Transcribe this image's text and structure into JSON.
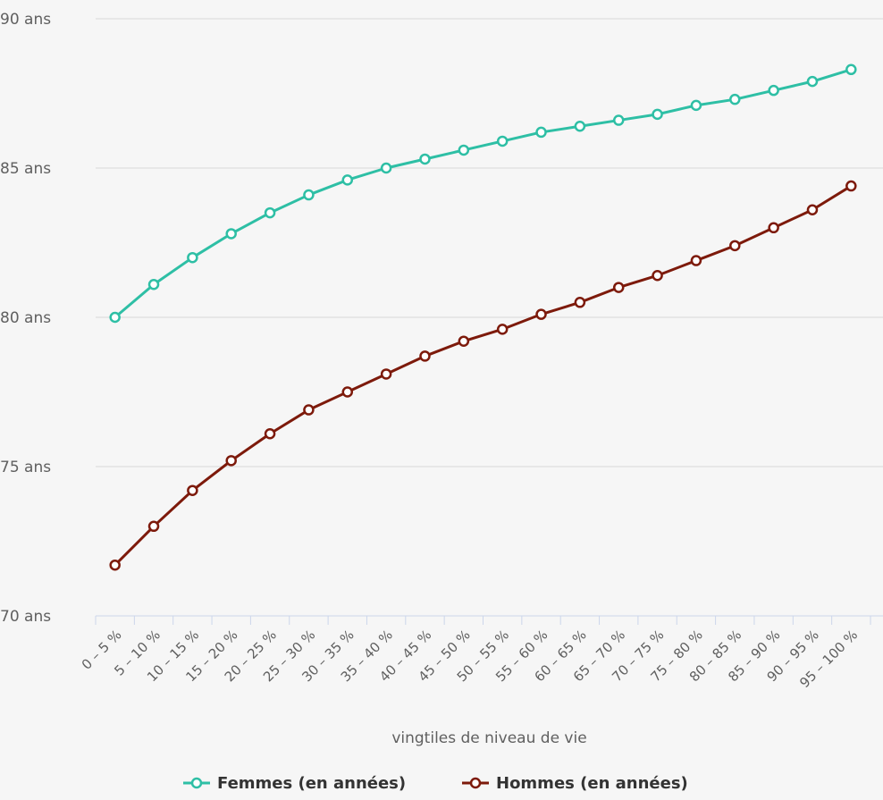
{
  "chart_data": {
    "type": "line",
    "xlabel": "vingtiles de niveau de vie",
    "ylabel": "",
    "ylim": [
      70,
      90
    ],
    "yticks": [
      {
        "value": 70,
        "label": "70 ans"
      },
      {
        "value": 75,
        "label": "75 ans"
      },
      {
        "value": 80,
        "label": "80 ans"
      },
      {
        "value": 85,
        "label": "85 ans"
      },
      {
        "value": 90,
        "label": "90 ans"
      }
    ],
    "grid": true,
    "legend_position": "bottom-center",
    "categories": [
      "0 – 5 %",
      "5 – 10 %",
      "10 – 15 %",
      "15 – 20 %",
      "20 – 25 %",
      "25 – 30 %",
      "30 – 35 %",
      "35 – 40 %",
      "40 – 45 %",
      "45 – 50 %",
      "50 – 55 %",
      "55 – 60 %",
      "60 – 65 %",
      "65 – 70 %",
      "70 – 75 %",
      "75 – 80 %",
      "80 – 85 %",
      "85 – 90 %",
      "90 – 95 %",
      "95 – 100 %"
    ],
    "series": [
      {
        "name": "Femmes (en années)",
        "color": "#2ebfa5",
        "values": [
          80.0,
          81.1,
          82.0,
          82.8,
          83.5,
          84.1,
          84.6,
          85.0,
          85.3,
          85.6,
          85.9,
          86.2,
          86.4,
          86.6,
          86.8,
          87.1,
          87.3,
          87.6,
          87.9,
          88.3
        ]
      },
      {
        "name": "Hommes (en années)",
        "color": "#7d1a0b",
        "values": [
          71.7,
          73.0,
          74.2,
          75.2,
          76.1,
          76.9,
          77.5,
          78.1,
          78.7,
          79.2,
          79.6,
          80.1,
          80.5,
          81.0,
          81.4,
          81.9,
          82.4,
          83.0,
          83.6,
          84.4
        ]
      }
    ]
  }
}
